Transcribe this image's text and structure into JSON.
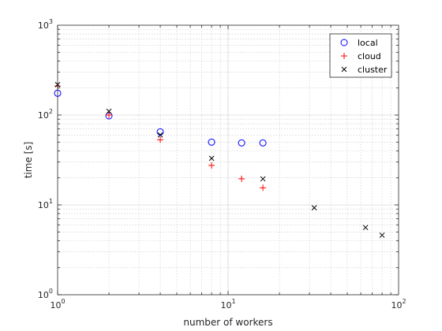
{
  "chart_data": {
    "type": "scatter",
    "xlabel": "number of workers",
    "ylabel": "time [s]",
    "xscale": "log",
    "yscale": "log",
    "xlim": [
      1,
      100
    ],
    "ylim": [
      1,
      1000
    ],
    "x_ticks": [
      {
        "value": 1,
        "base": "10",
        "exp": "0"
      },
      {
        "value": 10,
        "base": "10",
        "exp": "1"
      },
      {
        "value": 100,
        "base": "10",
        "exp": "2"
      }
    ],
    "y_ticks": [
      {
        "value": 1,
        "base": "10",
        "exp": "0"
      },
      {
        "value": 10,
        "base": "10",
        "exp": "1"
      },
      {
        "value": 100,
        "base": "10",
        "exp": "2"
      },
      {
        "value": 1000,
        "base": "10",
        "exp": "3"
      }
    ],
    "grid": true,
    "minor_grid": true,
    "legend_position": "top-right",
    "series": [
      {
        "name": "local",
        "marker": "circle",
        "color": "#0000ff",
        "x": [
          1,
          2,
          4,
          8,
          12,
          16
        ],
        "y": [
          175,
          98,
          65,
          50,
          49,
          49
        ]
      },
      {
        "name": "cloud",
        "marker": "plus",
        "color": "#ff0000",
        "x": [
          1,
          2,
          4,
          8,
          12,
          16
        ],
        "y": [
          210,
          100,
          53,
          27.5,
          19.5,
          15.5
        ]
      },
      {
        "name": "cluster",
        "marker": "cross",
        "color": "#000000",
        "x": [
          1,
          2,
          4,
          8,
          16,
          32,
          64,
          80
        ],
        "y": [
          218,
          110,
          60,
          33,
          19.5,
          9.3,
          5.6,
          4.6
        ]
      }
    ]
  }
}
